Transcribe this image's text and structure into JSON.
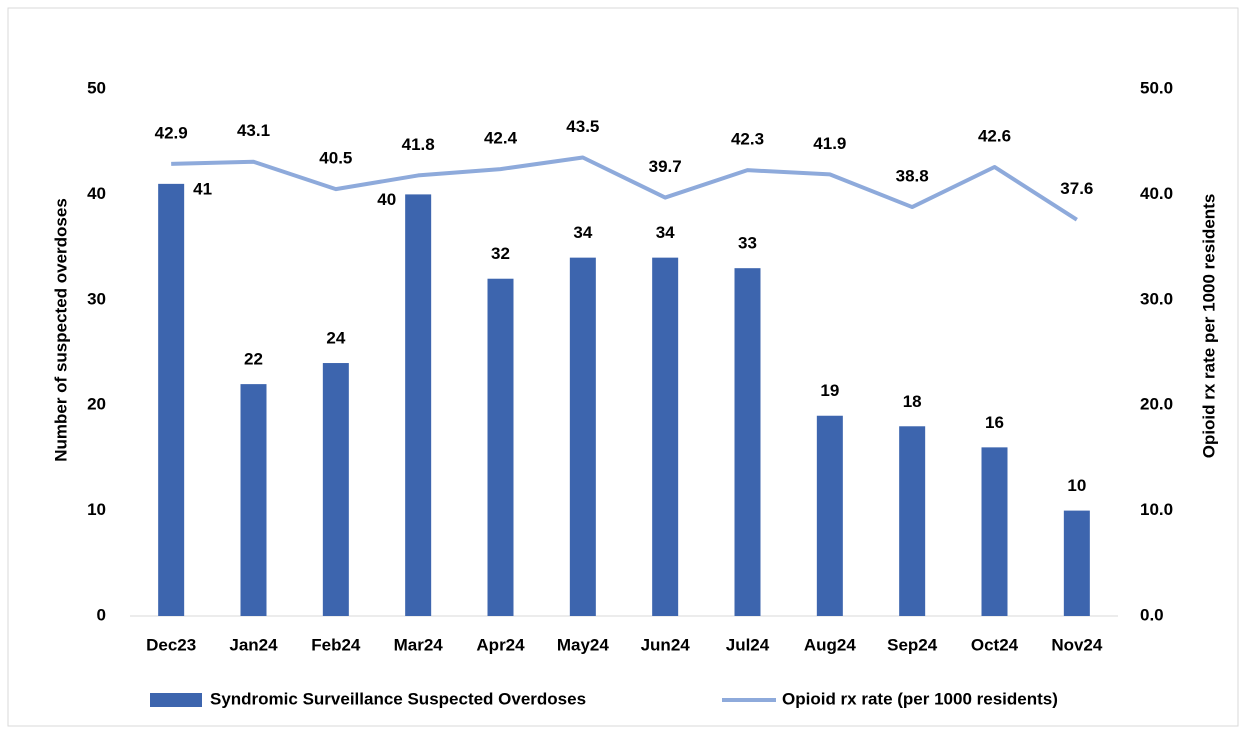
{
  "chart_data": {
    "type": "bar-line",
    "categories": [
      "Dec23",
      "Jan24",
      "Feb24",
      "Mar24",
      "Apr24",
      "May24",
      "Jun24",
      "Jul24",
      "Aug24",
      "Sep24",
      "Oct24",
      "Nov24"
    ],
    "series": [
      {
        "name": "Syndromic Surveillance Suspected Overdoses",
        "type": "bar",
        "color": "#3d65ae",
        "axis": "y",
        "values": [
          41,
          22,
          24,
          40,
          32,
          34,
          34,
          33,
          19,
          18,
          16,
          10
        ]
      },
      {
        "name": "Opioid rx rate (per 1000 residents)",
        "type": "line",
        "color": "#8eaadb",
        "axis": "y2",
        "values": [
          42.9,
          43.1,
          40.5,
          41.8,
          42.4,
          43.5,
          39.7,
          42.3,
          41.9,
          38.8,
          42.6,
          37.6
        ]
      }
    ],
    "ylabel": "Number of suspected overdoses",
    "y2label": "Opioid rx rate per 1000 residents",
    "ylim": [
      0,
      50
    ],
    "yticks": [
      0,
      10,
      20,
      30,
      40,
      50
    ],
    "y2lim": [
      0,
      50
    ],
    "y2ticks": [
      {
        "value": 0,
        "label": "0.0"
      },
      {
        "value": 10,
        "label": "10.0"
      },
      {
        "value": 20,
        "label": "20.0"
      },
      {
        "value": 30,
        "label": "30.0"
      },
      {
        "value": 40,
        "label": "40.0"
      },
      {
        "value": 50,
        "label": "50.0"
      }
    ],
    "grid": false,
    "legend": "bottom"
  }
}
